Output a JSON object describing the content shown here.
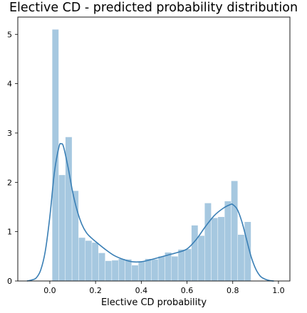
{
  "chart_data": {
    "type": "bar",
    "title": "Elective CD - predicted probability distribution",
    "xlabel": "Elective CD probability",
    "ylabel": "",
    "xlim": [
      -0.14,
      1.05
    ],
    "ylim": [
      0,
      5.35
    ],
    "xticks": [
      "0.0",
      "0.2",
      "0.4",
      "0.6",
      "0.8",
      "1.0"
    ],
    "yticks": [
      "0",
      "1",
      "2",
      "3",
      "4",
      "5"
    ],
    "grid": false,
    "legend": "none",
    "bar_color": "#a6c8e0",
    "line_color": "#3a7fb5",
    "bin_edges": [
      0.01,
      0.039,
      0.068,
      0.097,
      0.126,
      0.155,
      0.184,
      0.213,
      0.242,
      0.271,
      0.3,
      0.329,
      0.358,
      0.387,
      0.416,
      0.445,
      0.474,
      0.503,
      0.532,
      0.561,
      0.59,
      0.619,
      0.648,
      0.677,
      0.706,
      0.735,
      0.764,
      0.793,
      0.822,
      0.851,
      0.88
    ],
    "values": [
      5.1,
      2.15,
      2.92,
      1.83,
      0.88,
      0.82,
      0.78,
      0.57,
      0.41,
      0.42,
      0.45,
      0.44,
      0.32,
      0.4,
      0.45,
      0.44,
      0.5,
      0.58,
      0.5,
      0.64,
      0.65,
      1.13,
      0.92,
      1.58,
      1.28,
      1.3,
      1.62,
      2.03,
      0.94,
      1.2
    ],
    "kde": {
      "x": [
        -0.1,
        -0.08,
        -0.06,
        -0.04,
        -0.02,
        0.0,
        0.02,
        0.04,
        0.05,
        0.06,
        0.08,
        0.1,
        0.12,
        0.14,
        0.16,
        0.18,
        0.2,
        0.24,
        0.28,
        0.32,
        0.36,
        0.4,
        0.44,
        0.48,
        0.52,
        0.56,
        0.6,
        0.64,
        0.68,
        0.72,
        0.76,
        0.79,
        0.8,
        0.82,
        0.84,
        0.86,
        0.88,
        0.9,
        0.92,
        0.94,
        0.96,
        0.98
      ],
      "y": [
        0.0,
        0.02,
        0.06,
        0.22,
        0.6,
        1.3,
        2.2,
        2.72,
        2.78,
        2.72,
        2.3,
        1.8,
        1.42,
        1.15,
        0.98,
        0.88,
        0.8,
        0.65,
        0.52,
        0.44,
        0.39,
        0.39,
        0.43,
        0.48,
        0.53,
        0.58,
        0.65,
        0.84,
        1.1,
        1.33,
        1.48,
        1.55,
        1.55,
        1.45,
        1.2,
        0.85,
        0.5,
        0.25,
        0.1,
        0.04,
        0.01,
        0.0
      ]
    }
  }
}
